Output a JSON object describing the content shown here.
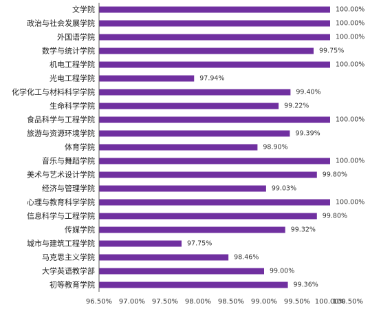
{
  "chart_data": {
    "type": "bar",
    "orientation": "horizontal",
    "categories": [
      "文学院",
      "政治与社会发展学院",
      "外国语学院",
      "数学与统计学院",
      "机电工程学院",
      "光电工程学院",
      "化学化工与材料科学学院",
      "生命科学学院",
      "食品科学与工程学院",
      "旅游与资源环境学院",
      "体育学院",
      "音乐与舞蹈学院",
      "美术与艺术设计学院",
      "经济与管理学院",
      "心理与教育科学学院",
      "信息科学与工程学院",
      "传媒学院",
      "城市与建筑工程学院",
      "马克思主义学院",
      "大学英语教学部",
      "初等教育学院"
    ],
    "values": [
      100.0,
      100.0,
      100.0,
      99.75,
      100.0,
      97.94,
      99.4,
      99.22,
      100.0,
      99.39,
      98.9,
      100.0,
      99.8,
      99.03,
      100.0,
      99.8,
      99.32,
      97.75,
      98.46,
      99.0,
      99.36
    ],
    "value_labels": [
      "100.00%",
      "100.00%",
      "100.00%",
      "99.75%",
      "100.00%",
      "97.94%",
      "99.40%",
      "99.22%",
      "100.00%",
      "99.39%",
      "98.90%",
      "100.00%",
      "99.80%",
      "99.03%",
      "100.00%",
      "99.80%",
      "99.32%",
      "97.75%",
      "98.46%",
      "99.00%",
      "99.36%"
    ],
    "xlim": [
      96.5,
      100.5
    ],
    "x_ticks": [
      96.5,
      97.0,
      97.5,
      98.0,
      98.5,
      99.0,
      99.5,
      100.0,
      100.5
    ],
    "x_tick_labels": [
      "96.50%",
      "97.00%",
      "97.50%",
      "98.00%",
      "98.50%",
      "99.00%",
      "99.50%",
      "100.00%",
      "100.50%"
    ],
    "title": "",
    "xlabel": "",
    "ylabel": "",
    "grid": false,
    "bar_color": "#7030A0"
  }
}
